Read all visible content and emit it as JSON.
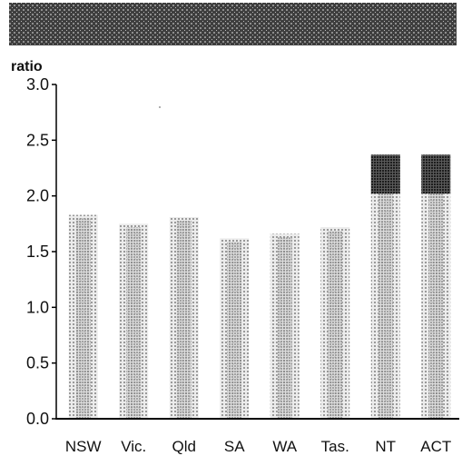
{
  "chart_data": {
    "type": "bar",
    "title": "",
    "ylabel": "ratio",
    "xlabel": "",
    "categories": [
      "NSW",
      "Vic.",
      "Qld",
      "SA",
      "WA",
      "Tas.",
      "NT",
      "ACT"
    ],
    "values": [
      1.83,
      1.75,
      1.81,
      1.62,
      1.66,
      1.72,
      2.37,
      2.37
    ],
    "ylim": [
      0,
      3.0
    ],
    "yticks": [
      "0.0",
      "0.5",
      "1.0",
      "1.5",
      "2.0",
      "2.5",
      "3.0"
    ],
    "grid": false,
    "legend": "none",
    "colors": {
      "header": "#4a4a4a",
      "bar_light": "#cdcdcd",
      "bar_mid": "#b3b3b3",
      "bar_dark": "#3c3c3c",
      "axis": "#000000"
    }
  }
}
